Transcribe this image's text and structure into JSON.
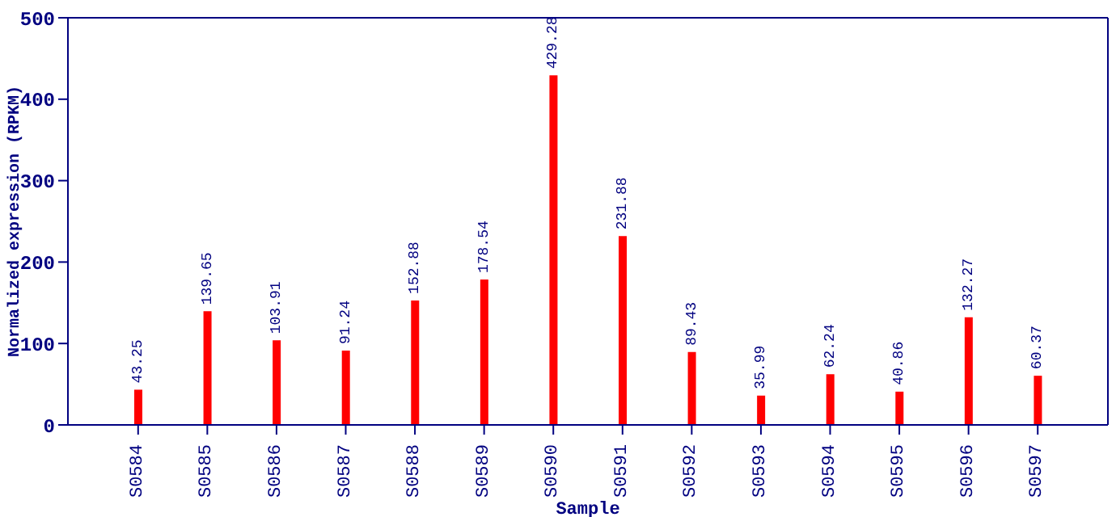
{
  "chart_data": {
    "type": "bar",
    "xlabel": "Sample",
    "ylabel": "Normalized expression (RPKM)",
    "categories": [
      "S0584",
      "S0585",
      "S0586",
      "S0587",
      "S0588",
      "S0589",
      "S0590",
      "S0591",
      "S0592",
      "S0593",
      "S0594",
      "S0595",
      "S0596",
      "S0597"
    ],
    "values": [
      43.25,
      139.65,
      103.91,
      91.24,
      152.88,
      178.54,
      429.28,
      231.88,
      89.43,
      35.99,
      62.24,
      40.86,
      132.27,
      60.37
    ],
    "color": "#ff0000",
    "ylim": [
      0,
      500
    ],
    "yticks": [
      0,
      100,
      200,
      300,
      400,
      500
    ],
    "grid": false,
    "legend": false,
    "data_labels": true
  }
}
